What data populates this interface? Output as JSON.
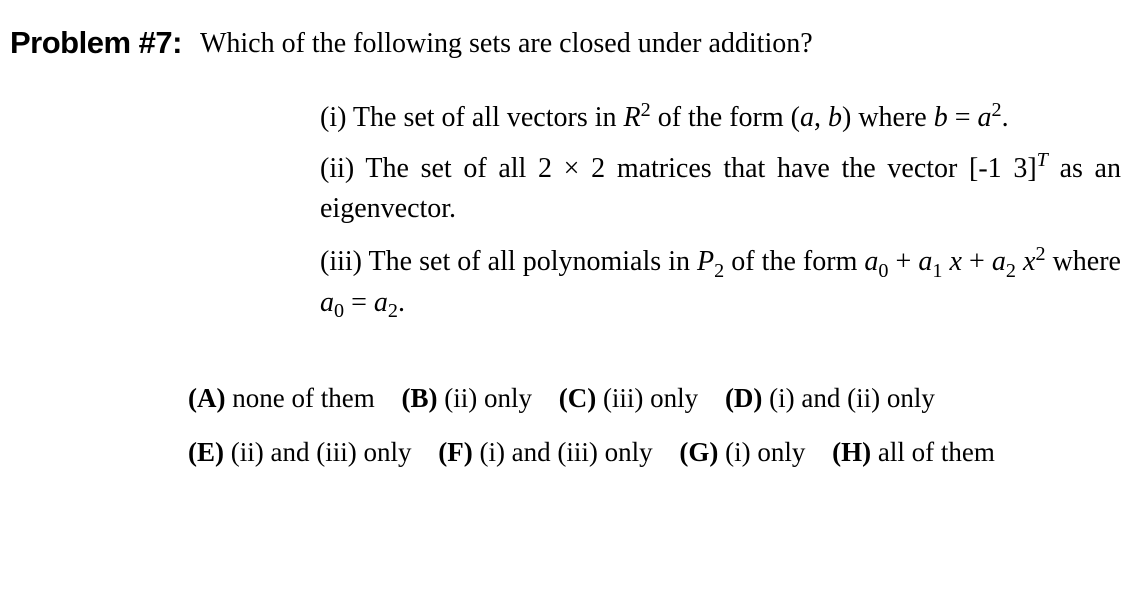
{
  "problem": {
    "label": "Problem #7:",
    "question": "Which of the following sets are closed under addition?"
  },
  "items": {
    "i_pre": "(i) The set of all vectors in ",
    "i_R": "R",
    "i_R_sup": "2",
    "i_mid": " of the form (",
    "i_a": "a",
    "i_comma": ", ",
    "i_b": "b",
    "i_where": ") where ",
    "i_b2": "b",
    "i_eq": " = ",
    "i_a2": "a",
    "i_sq": "2",
    "i_dot": ".",
    "ii_pre": "(ii) The set of all 2 × 2 matrices that have the vector [-1  3]",
    "ii_T": "T",
    "ii_post": " as an eigenvector.",
    "iii_pre": "(iii) The set of all polynomials in ",
    "iii_P": "P",
    "iii_P_sub": "2",
    "iii_form": " of the form ",
    "iii_a0": "a",
    "iii_a0_sub": "0",
    "iii_plus1": " + ",
    "iii_a1": "a",
    "iii_a1_sub": "1",
    "iii_x1": " x",
    "iii_plus2": " + ",
    "iii_a2": "a",
    "iii_a2_sub": "2",
    "iii_x2": " x",
    "iii_x2_sup": "2",
    "iii_where": " where ",
    "iii_a0b": "a",
    "iii_a0b_sub": "0",
    "iii_eq": " = ",
    "iii_a2b": "a",
    "iii_a2b_sub": "2",
    "iii_dot": "."
  },
  "options": {
    "A": {
      "letter": "(A)",
      "text": " none of them"
    },
    "B": {
      "letter": "(B)",
      "text": " (ii) only"
    },
    "C": {
      "letter": "(C)",
      "text": " (iii) only"
    },
    "D": {
      "letter": "(D)",
      "text": " (i) and (ii) only"
    },
    "E": {
      "letter": "(E)",
      "text": " (ii) and (iii) only"
    },
    "F": {
      "letter": "(F)",
      "text": " (i) and (iii) only"
    },
    "G": {
      "letter": "(G)",
      "text": " (i) only"
    },
    "H": {
      "letter": "(H)",
      "text": " all of them"
    }
  },
  "style": {
    "background": "#ffffff",
    "text_color": "#000000",
    "problem_label_fontsize": 31,
    "body_fontsize": 28,
    "options_fontsize": 27,
    "font_family_label": "Arial",
    "font_family_body": "Times New Roman"
  }
}
